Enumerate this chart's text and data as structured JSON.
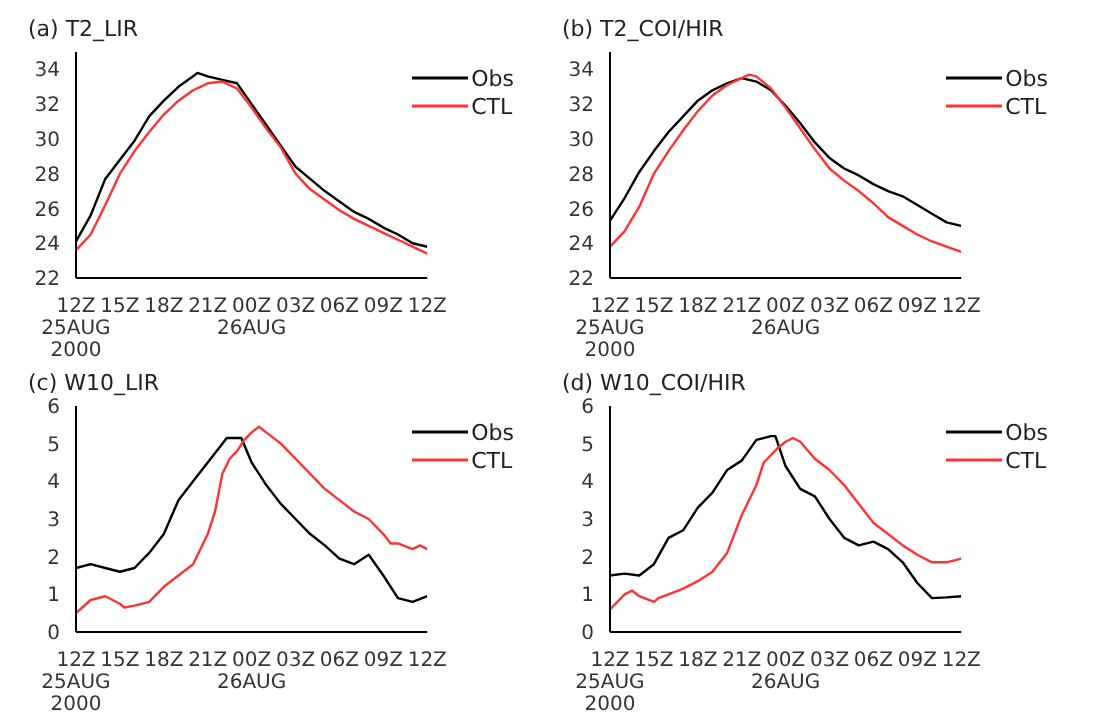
{
  "chart_data": [
    {
      "type": "line",
      "title": "(a) T2_LIR",
      "xlim": [
        "2000-08-25T12:00",
        "2000-08-26T12:00"
      ],
      "xticks": [
        {
          "value": "2000-08-25T12:00",
          "label": "12Z\n25AUG\n2000"
        },
        {
          "value": "2000-08-25T15:00",
          "label": "15Z"
        },
        {
          "value": "2000-08-25T18:00",
          "label": "18Z"
        },
        {
          "value": "2000-08-25T21:00",
          "label": "21Z"
        },
        {
          "value": "2000-08-26T00:00",
          "label": "00Z\n26AUG"
        },
        {
          "value": "2000-08-26T03:00",
          "label": "03Z"
        },
        {
          "value": "2000-08-26T06:00",
          "label": "06Z"
        },
        {
          "value": "2000-08-26T09:00",
          "label": "09Z"
        },
        {
          "value": "2000-08-26T12:00",
          "label": "12Z"
        }
      ],
      "ylim": [
        22,
        35
      ],
      "yticks": [
        22,
        24,
        26,
        28,
        30,
        32,
        34
      ],
      "legend": "top right",
      "marker": "none",
      "series": [
        {
          "name": "Obs",
          "color": "#000000",
          "x": [
            "2000-08-25T12:00",
            "2000-08-25T13:00",
            "2000-08-25T14:00",
            "2000-08-25T15:00",
            "2000-08-25T16:00",
            "2000-08-25T17:00",
            "2000-08-25T18:00",
            "2000-08-25T19:00",
            "2000-08-25T20:00",
            "2000-08-25T20:18",
            "2000-08-25T21:00",
            "2000-08-25T22:00",
            "2000-08-25T23:00",
            "2000-08-26T00:00",
            "2000-08-26T01:00",
            "2000-08-26T02:00",
            "2000-08-26T03:00",
            "2000-08-26T04:00",
            "2000-08-26T05:00",
            "2000-08-26T06:00",
            "2000-08-26T07:00",
            "2000-08-26T08:00",
            "2000-08-26T09:00",
            "2000-08-26T10:00",
            "2000-08-26T11:00",
            "2000-08-26T12:00"
          ],
          "values": [
            24.1,
            25.6,
            27.7,
            28.8,
            29.9,
            31.3,
            32.2,
            33.0,
            33.6,
            33.8,
            33.6,
            33.4,
            33.2,
            32.0,
            30.8,
            29.6,
            28.4,
            27.7,
            27.0,
            26.4,
            25.8,
            25.4,
            24.9,
            24.5,
            24.0,
            23.8
          ]
        },
        {
          "name": "CTL",
          "color": "#ff3333",
          "x": [
            "2000-08-25T12:00",
            "2000-08-25T13:00",
            "2000-08-25T14:00",
            "2000-08-25T15:00",
            "2000-08-25T16:00",
            "2000-08-25T17:00",
            "2000-08-25T18:00",
            "2000-08-25T19:00",
            "2000-08-25T20:00",
            "2000-08-25T21:00",
            "2000-08-25T22:00",
            "2000-08-25T23:00",
            "2000-08-26T00:00",
            "2000-08-26T01:00",
            "2000-08-26T02:00",
            "2000-08-26T03:00",
            "2000-08-26T04:00",
            "2000-08-26T05:00",
            "2000-08-26T06:00",
            "2000-08-26T07:00",
            "2000-08-26T08:00",
            "2000-08-26T09:00",
            "2000-08-26T10:00",
            "2000-08-26T11:00",
            "2000-08-26T12:00"
          ],
          "values": [
            23.6,
            24.5,
            26.2,
            28.0,
            29.3,
            30.4,
            31.4,
            32.2,
            32.8,
            33.2,
            33.3,
            32.9,
            31.8,
            30.6,
            29.5,
            28.0,
            27.1,
            26.5,
            25.9,
            25.4,
            25.0,
            24.6,
            24.2,
            23.8,
            23.4
          ]
        }
      ]
    },
    {
      "type": "line",
      "title": "(b) T2_COI/HIR",
      "xlim": [
        "2000-08-25T12:00",
        "2000-08-26T12:00"
      ],
      "xticks": [
        {
          "value": "2000-08-25T12:00",
          "label": "12Z\n25AUG\n2000"
        },
        {
          "value": "2000-08-25T15:00",
          "label": "15Z"
        },
        {
          "value": "2000-08-25T18:00",
          "label": "18Z"
        },
        {
          "value": "2000-08-25T21:00",
          "label": "21Z"
        },
        {
          "value": "2000-08-26T00:00",
          "label": "00Z\n26AUG"
        },
        {
          "value": "2000-08-26T03:00",
          "label": "03Z"
        },
        {
          "value": "2000-08-26T06:00",
          "label": "06Z"
        },
        {
          "value": "2000-08-26T09:00",
          "label": "09Z"
        },
        {
          "value": "2000-08-26T12:00",
          "label": "12Z"
        }
      ],
      "ylim": [
        22,
        35
      ],
      "yticks": [
        22,
        24,
        26,
        28,
        30,
        32,
        34
      ],
      "legend": "top right",
      "marker": "none",
      "series": [
        {
          "name": "Obs",
          "color": "#000000",
          "x": [
            "2000-08-25T12:00",
            "2000-08-25T13:00",
            "2000-08-25T14:00",
            "2000-08-25T15:00",
            "2000-08-25T16:00",
            "2000-08-25T17:00",
            "2000-08-25T18:00",
            "2000-08-25T19:00",
            "2000-08-25T20:00",
            "2000-08-25T21:00",
            "2000-08-25T22:00",
            "2000-08-25T23:00",
            "2000-08-26T00:00",
            "2000-08-26T01:00",
            "2000-08-26T02:00",
            "2000-08-26T03:00",
            "2000-08-26T04:00",
            "2000-08-26T05:00",
            "2000-08-26T06:00",
            "2000-08-26T07:00",
            "2000-08-26T08:00",
            "2000-08-26T09:00",
            "2000-08-26T10:00",
            "2000-08-26T11:00",
            "2000-08-26T12:00"
          ],
          "values": [
            25.3,
            26.6,
            28.1,
            29.3,
            30.4,
            31.3,
            32.2,
            32.8,
            33.2,
            33.5,
            33.3,
            32.8,
            31.9,
            30.9,
            29.8,
            28.9,
            28.3,
            27.9,
            27.4,
            27.0,
            26.7,
            26.2,
            25.7,
            25.2,
            25.0
          ]
        },
        {
          "name": "CTL",
          "color": "#ff3333",
          "x": [
            "2000-08-25T12:00",
            "2000-08-25T13:00",
            "2000-08-25T14:00",
            "2000-08-25T15:00",
            "2000-08-25T16:00",
            "2000-08-25T17:00",
            "2000-08-25T18:00",
            "2000-08-25T19:00",
            "2000-08-25T20:00",
            "2000-08-25T21:00",
            "2000-08-25T21:30",
            "2000-08-25T22:00",
            "2000-08-25T23:00",
            "2000-08-26T00:00",
            "2000-08-26T01:00",
            "2000-08-26T02:00",
            "2000-08-26T03:00",
            "2000-08-26T04:00",
            "2000-08-26T05:00",
            "2000-08-26T06:00",
            "2000-08-26T07:00",
            "2000-08-26T08:00",
            "2000-08-26T09:00",
            "2000-08-26T10:00",
            "2000-08-26T11:00",
            "2000-08-26T12:00"
          ],
          "values": [
            23.8,
            24.7,
            26.1,
            28.0,
            29.3,
            30.5,
            31.6,
            32.5,
            33.1,
            33.5,
            33.7,
            33.6,
            32.9,
            31.8,
            30.6,
            29.4,
            28.3,
            27.6,
            27.0,
            26.3,
            25.5,
            25.0,
            24.5,
            24.1,
            23.8,
            23.5
          ]
        }
      ]
    },
    {
      "type": "line",
      "title": "(c) W10_LIR",
      "xlim": [
        "2000-08-25T12:00",
        "2000-08-26T12:00"
      ],
      "xticks": [
        {
          "value": "2000-08-25T12:00",
          "label": "12Z\n25AUG\n2000"
        },
        {
          "value": "2000-08-25T15:00",
          "label": "15Z"
        },
        {
          "value": "2000-08-25T18:00",
          "label": "18Z"
        },
        {
          "value": "2000-08-25T21:00",
          "label": "21Z"
        },
        {
          "value": "2000-08-26T00:00",
          "label": "00Z\n26AUG"
        },
        {
          "value": "2000-08-26T03:00",
          "label": "03Z"
        },
        {
          "value": "2000-08-26T06:00",
          "label": "06Z"
        },
        {
          "value": "2000-08-26T09:00",
          "label": "09Z"
        },
        {
          "value": "2000-08-26T12:00",
          "label": "12Z"
        }
      ],
      "ylim": [
        0,
        6
      ],
      "yticks": [
        0,
        1,
        2,
        3,
        4,
        5,
        6
      ],
      "legend": "top right",
      "marker": "none",
      "series": [
        {
          "name": "Obs",
          "color": "#000000",
          "x": [
            "2000-08-25T12:00",
            "2000-08-25T13:00",
            "2000-08-25T14:00",
            "2000-08-25T15:00",
            "2000-08-25T16:00",
            "2000-08-25T17:00",
            "2000-08-25T18:00",
            "2000-08-25T19:00",
            "2000-08-25T20:00",
            "2000-08-25T21:00",
            "2000-08-25T22:00",
            "2000-08-25T22:18",
            "2000-08-25T23:18",
            "2000-08-26T00:00",
            "2000-08-26T01:00",
            "2000-08-26T02:00",
            "2000-08-26T03:00",
            "2000-08-26T04:00",
            "2000-08-26T05:00",
            "2000-08-26T06:00",
            "2000-08-26T07:00",
            "2000-08-26T08:00",
            "2000-08-26T09:00",
            "2000-08-26T10:00",
            "2000-08-26T11:00",
            "2000-08-26T12:00"
          ],
          "values": [
            1.7,
            1.8,
            1.7,
            1.6,
            1.7,
            2.1,
            2.6,
            3.5,
            4.0,
            4.5,
            5.0,
            5.15,
            5.15,
            4.5,
            3.9,
            3.4,
            3.0,
            2.6,
            2.3,
            1.95,
            1.8,
            2.05,
            1.5,
            0.9,
            0.8,
            0.95
          ]
        },
        {
          "name": "CTL",
          "color": "#ff3333",
          "x": [
            "2000-08-25T12:00",
            "2000-08-25T13:00",
            "2000-08-25T14:00",
            "2000-08-25T15:00",
            "2000-08-25T15:18",
            "2000-08-25T16:00",
            "2000-08-25T17:00",
            "2000-08-25T18:00",
            "2000-08-25T19:00",
            "2000-08-25T20:00",
            "2000-08-25T21:00",
            "2000-08-25T21:30",
            "2000-08-25T22:00",
            "2000-08-25T22:30",
            "2000-08-25T23:00",
            "2000-08-25T23:30",
            "2000-08-26T00:00",
            "2000-08-26T00:30",
            "2000-08-26T01:00",
            "2000-08-26T02:00",
            "2000-08-26T03:00",
            "2000-08-26T04:00",
            "2000-08-26T05:00",
            "2000-08-26T06:00",
            "2000-08-26T07:00",
            "2000-08-26T08:00",
            "2000-08-26T09:00",
            "2000-08-26T09:30",
            "2000-08-26T10:00",
            "2000-08-26T11:00",
            "2000-08-26T11:30",
            "2000-08-26T12:00"
          ],
          "values": [
            0.5,
            0.85,
            0.95,
            0.75,
            0.65,
            0.7,
            0.8,
            1.2,
            1.5,
            1.8,
            2.6,
            3.2,
            4.2,
            4.6,
            4.8,
            5.1,
            5.3,
            5.45,
            5.3,
            5.0,
            4.6,
            4.2,
            3.8,
            3.5,
            3.2,
            3.0,
            2.6,
            2.35,
            2.35,
            2.2,
            2.3,
            2.2
          ]
        }
      ]
    },
    {
      "type": "line",
      "title": "(d) W10_COI/HIR",
      "xlim": [
        "2000-08-25T12:00",
        "2000-08-26T12:00"
      ],
      "xticks": [
        {
          "value": "2000-08-25T12:00",
          "label": "12Z\n25AUG\n2000"
        },
        {
          "value": "2000-08-25T15:00",
          "label": "15Z"
        },
        {
          "value": "2000-08-25T18:00",
          "label": "18Z"
        },
        {
          "value": "2000-08-25T21:00",
          "label": "21Z"
        },
        {
          "value": "2000-08-26T00:00",
          "label": "00Z\n26AUG"
        },
        {
          "value": "2000-08-26T03:00",
          "label": "03Z"
        },
        {
          "value": "2000-08-26T06:00",
          "label": "06Z"
        },
        {
          "value": "2000-08-26T09:00",
          "label": "09Z"
        },
        {
          "value": "2000-08-26T12:00",
          "label": "12Z"
        }
      ],
      "ylim": [
        0,
        6
      ],
      "yticks": [
        0,
        1,
        2,
        3,
        4,
        5,
        6
      ],
      "legend": "top right",
      "marker": "none",
      "series": [
        {
          "name": "Obs",
          "color": "#000000",
          "x": [
            "2000-08-25T12:00",
            "2000-08-25T13:00",
            "2000-08-25T14:00",
            "2000-08-25T15:00",
            "2000-08-25T16:00",
            "2000-08-25T17:00",
            "2000-08-25T18:00",
            "2000-08-25T19:00",
            "2000-08-25T20:00",
            "2000-08-25T21:00",
            "2000-08-25T22:00",
            "2000-08-25T23:00",
            "2000-08-25T23:18",
            "2000-08-26T00:00",
            "2000-08-26T01:00",
            "2000-08-26T02:00",
            "2000-08-26T03:00",
            "2000-08-26T04:00",
            "2000-08-26T05:00",
            "2000-08-26T06:00",
            "2000-08-26T07:00",
            "2000-08-26T08:00",
            "2000-08-26T09:00",
            "2000-08-26T10:00",
            "2000-08-26T11:00",
            "2000-08-26T12:00"
          ],
          "values": [
            1.5,
            1.55,
            1.5,
            1.8,
            2.5,
            2.7,
            3.3,
            3.7,
            4.3,
            4.55,
            5.1,
            5.2,
            5.2,
            4.4,
            3.8,
            3.6,
            3.0,
            2.5,
            2.3,
            2.4,
            2.2,
            1.85,
            1.3,
            0.9,
            0.92,
            0.95
          ]
        },
        {
          "name": "CTL",
          "color": "#ff3333",
          "x": [
            "2000-08-25T12:00",
            "2000-08-25T13:00",
            "2000-08-25T13:30",
            "2000-08-25T14:00",
            "2000-08-25T15:00",
            "2000-08-25T15:18",
            "2000-08-25T16:00",
            "2000-08-25T17:00",
            "2000-08-25T18:00",
            "2000-08-25T19:00",
            "2000-08-25T20:00",
            "2000-08-25T21:00",
            "2000-08-25T22:00",
            "2000-08-25T22:30",
            "2000-08-25T23:00",
            "2000-08-25T23:30",
            "2000-08-26T00:00",
            "2000-08-26T00:30",
            "2000-08-26T01:00",
            "2000-08-26T02:00",
            "2000-08-26T03:00",
            "2000-08-26T04:00",
            "2000-08-26T05:00",
            "2000-08-26T06:00",
            "2000-08-26T07:00",
            "2000-08-26T08:00",
            "2000-08-26T09:00",
            "2000-08-26T10:00",
            "2000-08-26T11:00",
            "2000-08-26T12:00"
          ],
          "values": [
            0.6,
            1.0,
            1.1,
            0.95,
            0.8,
            0.9,
            1.0,
            1.15,
            1.35,
            1.6,
            2.1,
            3.1,
            3.9,
            4.5,
            4.7,
            4.9,
            5.05,
            5.15,
            5.05,
            4.6,
            4.3,
            3.9,
            3.4,
            2.9,
            2.6,
            2.3,
            2.05,
            1.85,
            1.85,
            1.95
          ]
        }
      ]
    }
  ]
}
